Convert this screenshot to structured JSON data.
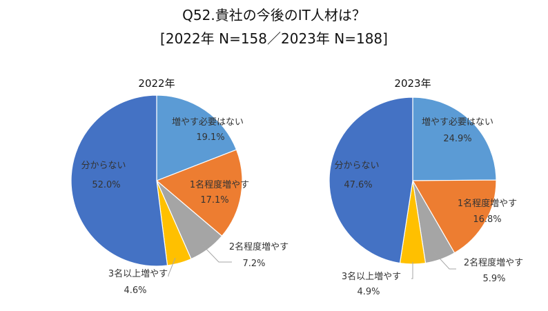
{
  "title_line1": "Q52.貴社の今後のIT人材は？",
  "title_line2": "[2022年 N=158／2023年 N=188]",
  "chart_data": [
    {
      "type": "pie",
      "title": "2022年",
      "slices": [
        {
          "label": "増やす必要はない",
          "value": 19.1,
          "value_text": "19.1%",
          "color": "#5B9BD5"
        },
        {
          "label": "1名程度増やす",
          "value": 17.1,
          "value_text": "17.1%",
          "color": "#ED7D31"
        },
        {
          "label": "2名程度増やす",
          "value": 7.2,
          "value_text": "7.2%",
          "color": "#A5A5A5"
        },
        {
          "label": "3名以上増やす",
          "value": 4.6,
          "value_text": "4.6%",
          "color": "#FFC000"
        },
        {
          "label": "分からない",
          "value": 52.0,
          "value_text": "52.0%",
          "color": "#4472C4"
        }
      ]
    },
    {
      "type": "pie",
      "title": "2023年",
      "slices": [
        {
          "label": "増やす必要はない",
          "value": 24.9,
          "value_text": "24.9%",
          "color": "#5B9BD5"
        },
        {
          "label": "1名程度増やす",
          "value": 16.8,
          "value_text": "16.8%",
          "color": "#ED7D31"
        },
        {
          "label": "2名程度増やす",
          "value": 5.9,
          "value_text": "5.9%",
          "color": "#A5A5A5"
        },
        {
          "label": "3名以上増やす",
          "value": 4.9,
          "value_text": "4.9%",
          "color": "#FFC000"
        },
        {
          "label": "分からない",
          "value": 47.6,
          "value_text": "47.6%",
          "color": "#4472C4"
        }
      ]
    }
  ]
}
